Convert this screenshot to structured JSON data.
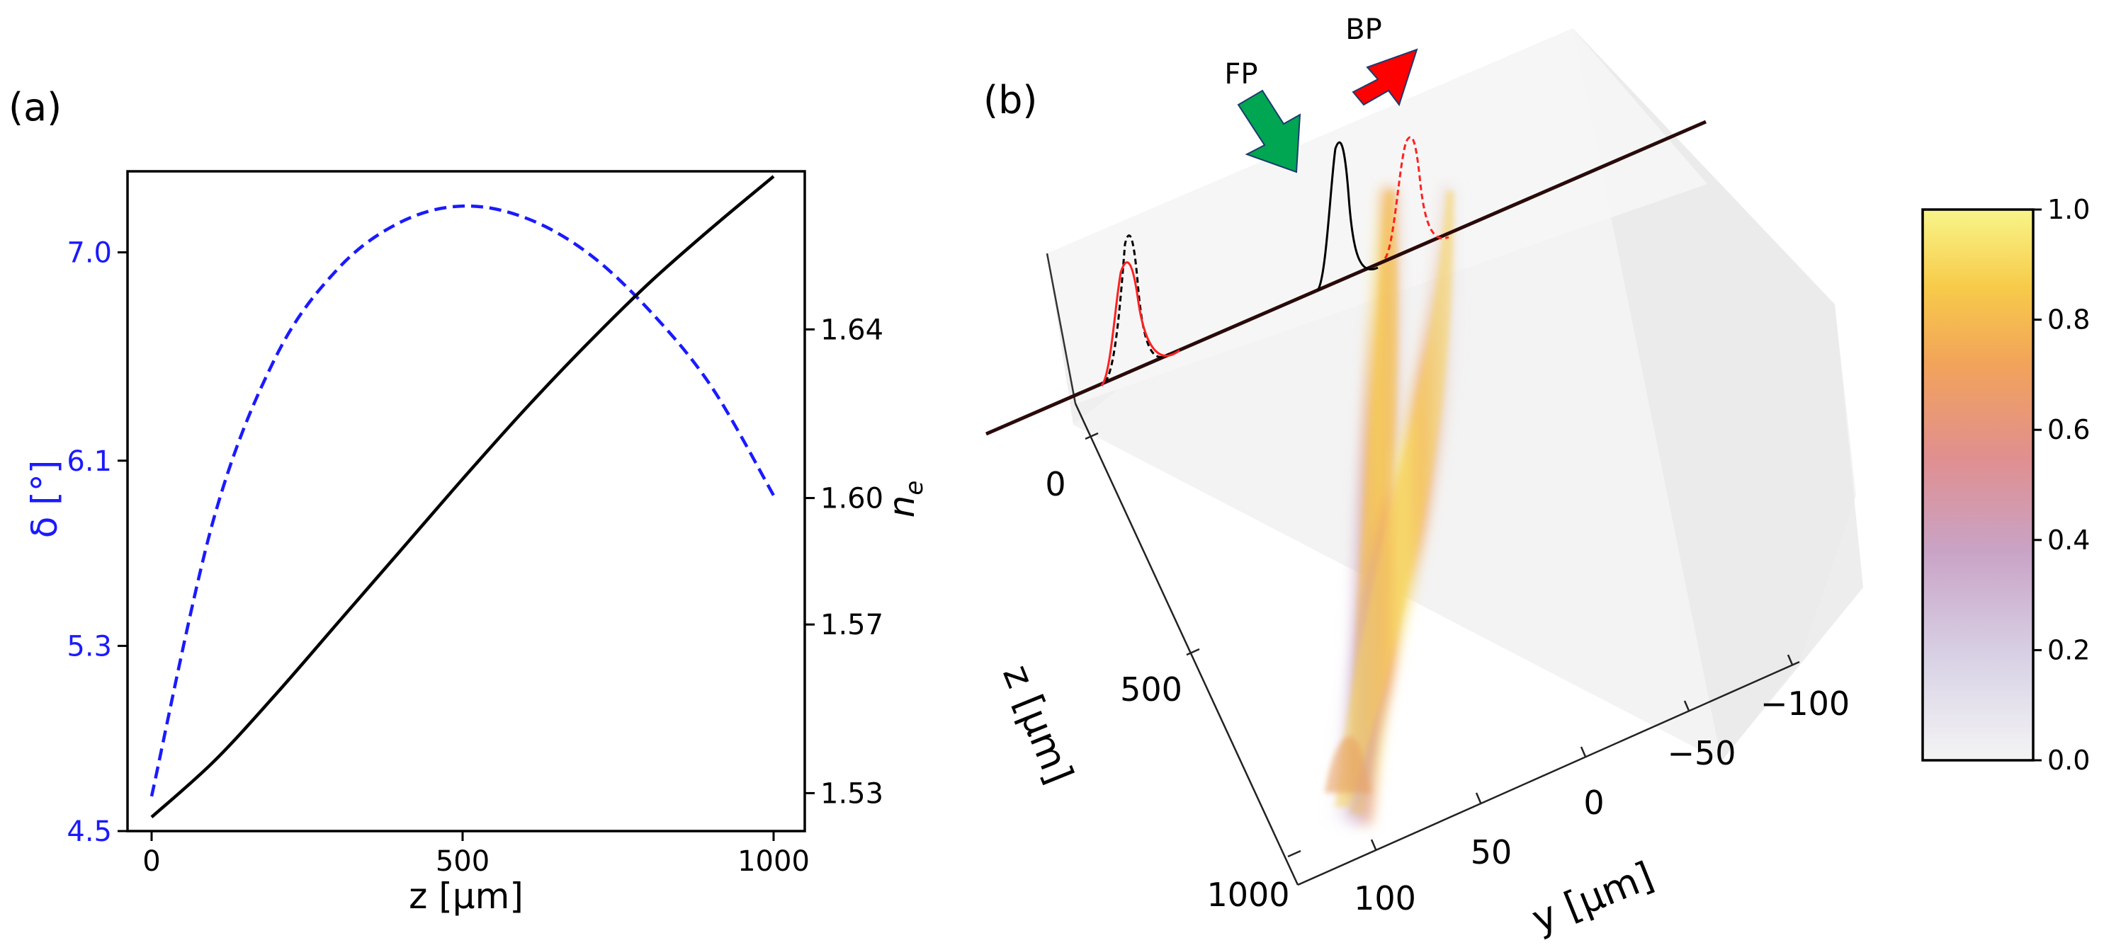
{
  "chart_data": [
    {
      "panel": "(a)",
      "type": "line",
      "x": [
        0,
        100,
        200,
        300,
        400,
        500,
        600,
        700,
        800,
        900,
        1000
      ],
      "xlabel": "z [μm]",
      "xticks": [
        "0",
        "500",
        "1000"
      ],
      "xlim": [
        0,
        1000
      ],
      "series": [
        {
          "name": "delta",
          "axis": "left",
          "style": "dashed",
          "color": "#1a1aff",
          "values": [
            4.65,
            5.85,
            6.55,
            6.93,
            7.13,
            7.2,
            7.15,
            7.0,
            6.75,
            6.42,
            5.95
          ]
        },
        {
          "name": "ne",
          "axis": "right",
          "style": "solid",
          "color": "#000000",
          "values": [
            1.5243,
            1.5375,
            1.5535,
            1.5705,
            1.5875,
            1.6045,
            1.621,
            1.6365,
            1.651,
            1.664,
            1.6763
          ]
        }
      ],
      "ylabel_left": "δ [°]",
      "ylabel_right": "n_e",
      "ylabel_right_base": "n",
      "ylabel_right_sub": "e",
      "yticks_left": [
        "4.5",
        "5.3",
        "6.1",
        "7.0"
      ],
      "yticks_right": [
        "1.53",
        "1.57",
        "1.60",
        "1.64"
      ],
      "ylim_left": [
        4.5,
        7.35
      ],
      "ylim_right": [
        1.521,
        1.6775
      ]
    },
    {
      "panel": "(b)",
      "type": "heatmap",
      "description_values": {
        "z_ticks": [
          "0",
          "500",
          "1000"
        ],
        "y_ticks": [
          "100",
          "50",
          "0",
          "−50",
          "−100"
        ],
        "zlabel": "z [μm]",
        "ylabel": "y [μm]"
      },
      "annotations": {
        "forward": "FP",
        "backward": "BP"
      },
      "colorbar": {
        "min": 0.0,
        "max": 1.0,
        "ticks": [
          "0.0",
          "0.2",
          "0.4",
          "0.6",
          "0.8",
          "1.0"
        ]
      }
    }
  ],
  "colors": {
    "delta_line": "#1a1aff",
    "ne_line": "#000000",
    "fp_arrow": "#00a651",
    "bp_arrow": "#ff0000",
    "profile_red": "#ff2020"
  }
}
